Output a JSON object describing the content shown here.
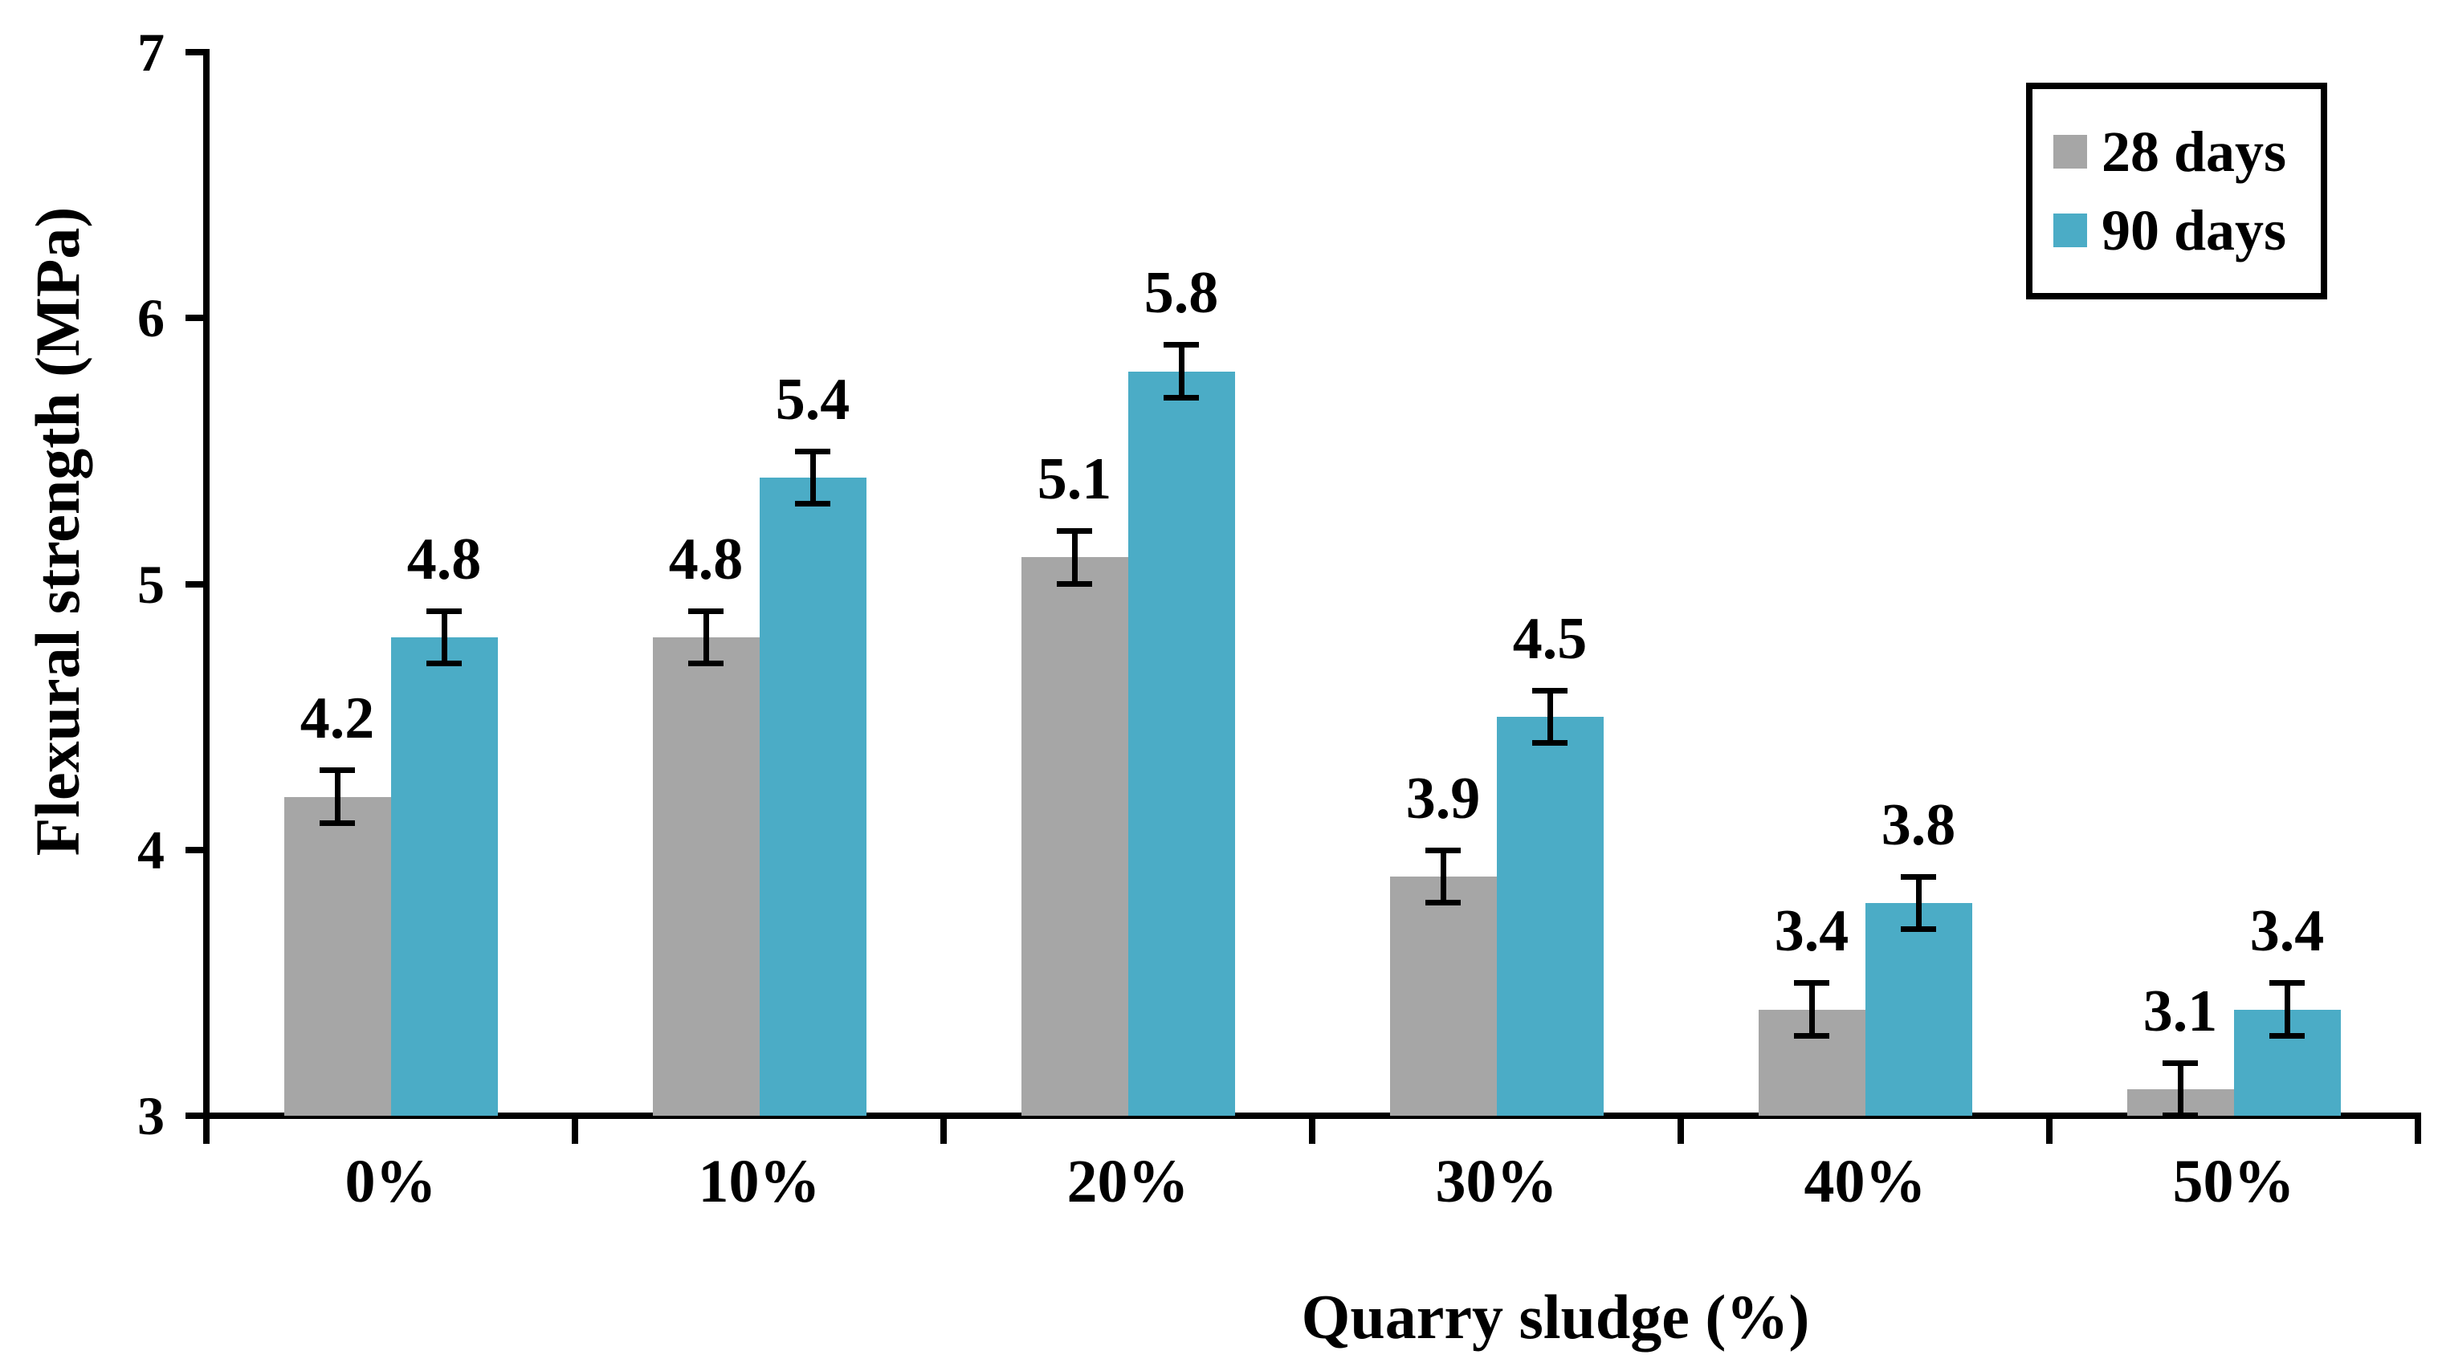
{
  "figure": {
    "y_axis_title": "Flexural strength (MPa)",
    "x_axis_title": "Quarry sludge (%)"
  },
  "legend": {
    "items": [
      {
        "label": "28 days",
        "color": "#A6A6A6"
      },
      {
        "label": "90 days",
        "color": "#4BACC6"
      }
    ]
  },
  "chart_data": {
    "type": "bar",
    "title": "",
    "xlabel": "Quarry sludge (%)",
    "ylabel": "Flexural strength (MPa)",
    "categories": [
      "0%",
      "10%",
      "20%",
      "30%",
      "40%",
      "50%"
    ],
    "series": [
      {
        "name": "28 days",
        "color": "#A6A6A6",
        "values": [
          4.2,
          4.8,
          5.1,
          3.9,
          3.4,
          3.1
        ]
      },
      {
        "name": "90 days",
        "color": "#4BACC6",
        "values": [
          4.8,
          5.4,
          5.8,
          4.5,
          3.8,
          3.4
        ]
      }
    ],
    "error_bar": 0.1,
    "ylim": [
      3,
      7
    ],
    "yticks": [
      3,
      4,
      5,
      6,
      7
    ],
    "data_labels": true,
    "grid": false,
    "legend_position": "top-right",
    "axis_color": "#000000",
    "label_number_format": "one-decimal"
  }
}
